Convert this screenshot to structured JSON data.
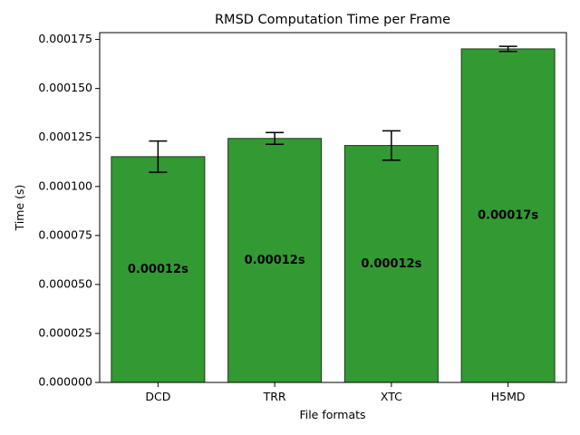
{
  "chart_data": {
    "type": "bar",
    "title": "RMSD Computation Time per Frame",
    "xlabel": "File formats",
    "ylabel": "Time (s)",
    "categories": [
      "DCD",
      "TRR",
      "XTC",
      "H5MD"
    ],
    "values": [
      0.0001152,
      0.0001245,
      0.0001209,
      0.0001702
    ],
    "errors": [
      8e-06,
      3e-06,
      7.5e-06,
      1.3e-06
    ],
    "bar_labels": [
      "0.00012s",
      "0.00012s",
      "0.00012s",
      "0.00017s"
    ],
    "bar_color": "#339933",
    "ylim": [
      0,
      0.0001785
    ],
    "yticks": [
      0,
      2.5e-05,
      5e-05,
      7.5e-05,
      0.0001,
      0.000125,
      0.00015,
      0.000175
    ],
    "ytick_labels": [
      "0.000000",
      "0.000025",
      "0.000050",
      "0.000075",
      "0.000100",
      "0.000125",
      "0.000150",
      "0.000175"
    ],
    "grid": false
  }
}
